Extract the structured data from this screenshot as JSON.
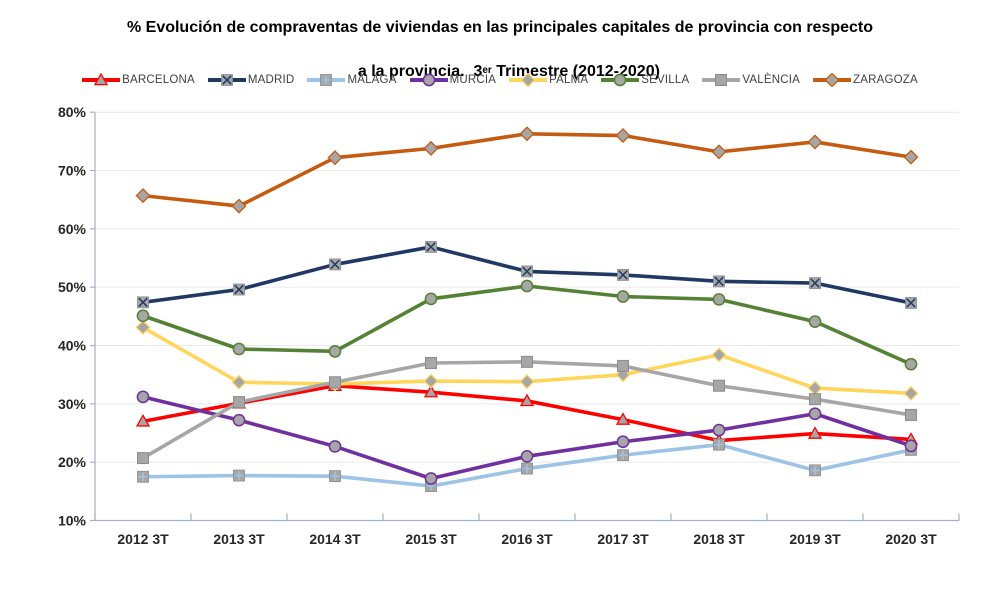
{
  "title": {
    "line1": "% Evolución de compraventas de viviendas en las principales capitales de provincia con respecto",
    "line2_pre": "a la provincia.  3",
    "line2_sup": "er",
    "line2_post": " Trimestre (2012-2020)"
  },
  "chart_data": {
    "type": "line",
    "categories": [
      "2012 3T",
      "2013 3T",
      "2014 3T",
      "2015 3T",
      "2016 3T",
      "2017 3T",
      "2018 3T",
      "2019 3T",
      "2020 3T"
    ],
    "series": [
      {
        "name": "BARCELONA",
        "color": "#FF0000",
        "marker": "triangle",
        "values": [
          27.0,
          30.1,
          33.1,
          32.0,
          30.5,
          27.3,
          23.7,
          24.9,
          23.9
        ]
      },
      {
        "name": "MADRID",
        "color": "#1F3864",
        "marker": "x-square",
        "values": [
          47.4,
          49.6,
          53.9,
          56.9,
          52.7,
          52.1,
          51.0,
          50.7,
          47.3
        ]
      },
      {
        "name": "MÁLAGA",
        "color": "#9DC3E6",
        "marker": "plus-square",
        "values": [
          17.5,
          17.7,
          17.6,
          15.9,
          18.9,
          21.2,
          23.0,
          18.6,
          22.1
        ]
      },
      {
        "name": "MURCIA",
        "color": "#7030A0",
        "marker": "circle",
        "values": [
          31.2,
          27.2,
          22.7,
          17.2,
          21.0,
          23.5,
          25.5,
          28.3,
          22.8
        ]
      },
      {
        "name": "PALMA",
        "color": "#FFD55A",
        "marker": "diamond",
        "values": [
          43.1,
          33.7,
          33.4,
          33.9,
          33.8,
          35.0,
          38.4,
          32.7,
          31.8
        ]
      },
      {
        "name": "SEVILLA",
        "color": "#548235",
        "marker": "circle",
        "values": [
          45.1,
          39.4,
          39.0,
          48.0,
          50.2,
          48.4,
          47.9,
          44.1,
          36.8
        ]
      },
      {
        "name": "VALÈNCIA",
        "color": "#A6A6A6",
        "marker": "square",
        "values": [
          20.7,
          30.3,
          33.7,
          37.0,
          37.2,
          36.5,
          33.1,
          30.8,
          28.1
        ]
      },
      {
        "name": "ZARAGOZA",
        "color": "#C55A11",
        "marker": "diamond",
        "values": [
          65.7,
          63.9,
          72.2,
          73.8,
          76.3,
          76.0,
          73.2,
          74.9,
          72.3
        ]
      }
    ],
    "ylim": [
      10,
      80
    ],
    "y_tick_step": 10,
    "y_tick_suffix": "%",
    "grid": true,
    "legend_position": "top",
    "marker_fill": "#A6A6A6",
    "marker_edge_gray": "#8C8C8C",
    "axis_color": "#A3B1CC",
    "gridline_color": "#EAEAEA",
    "tick_label_color": "#262626",
    "legend_label_color": "#404040",
    "background": "#FFFFFF"
  }
}
